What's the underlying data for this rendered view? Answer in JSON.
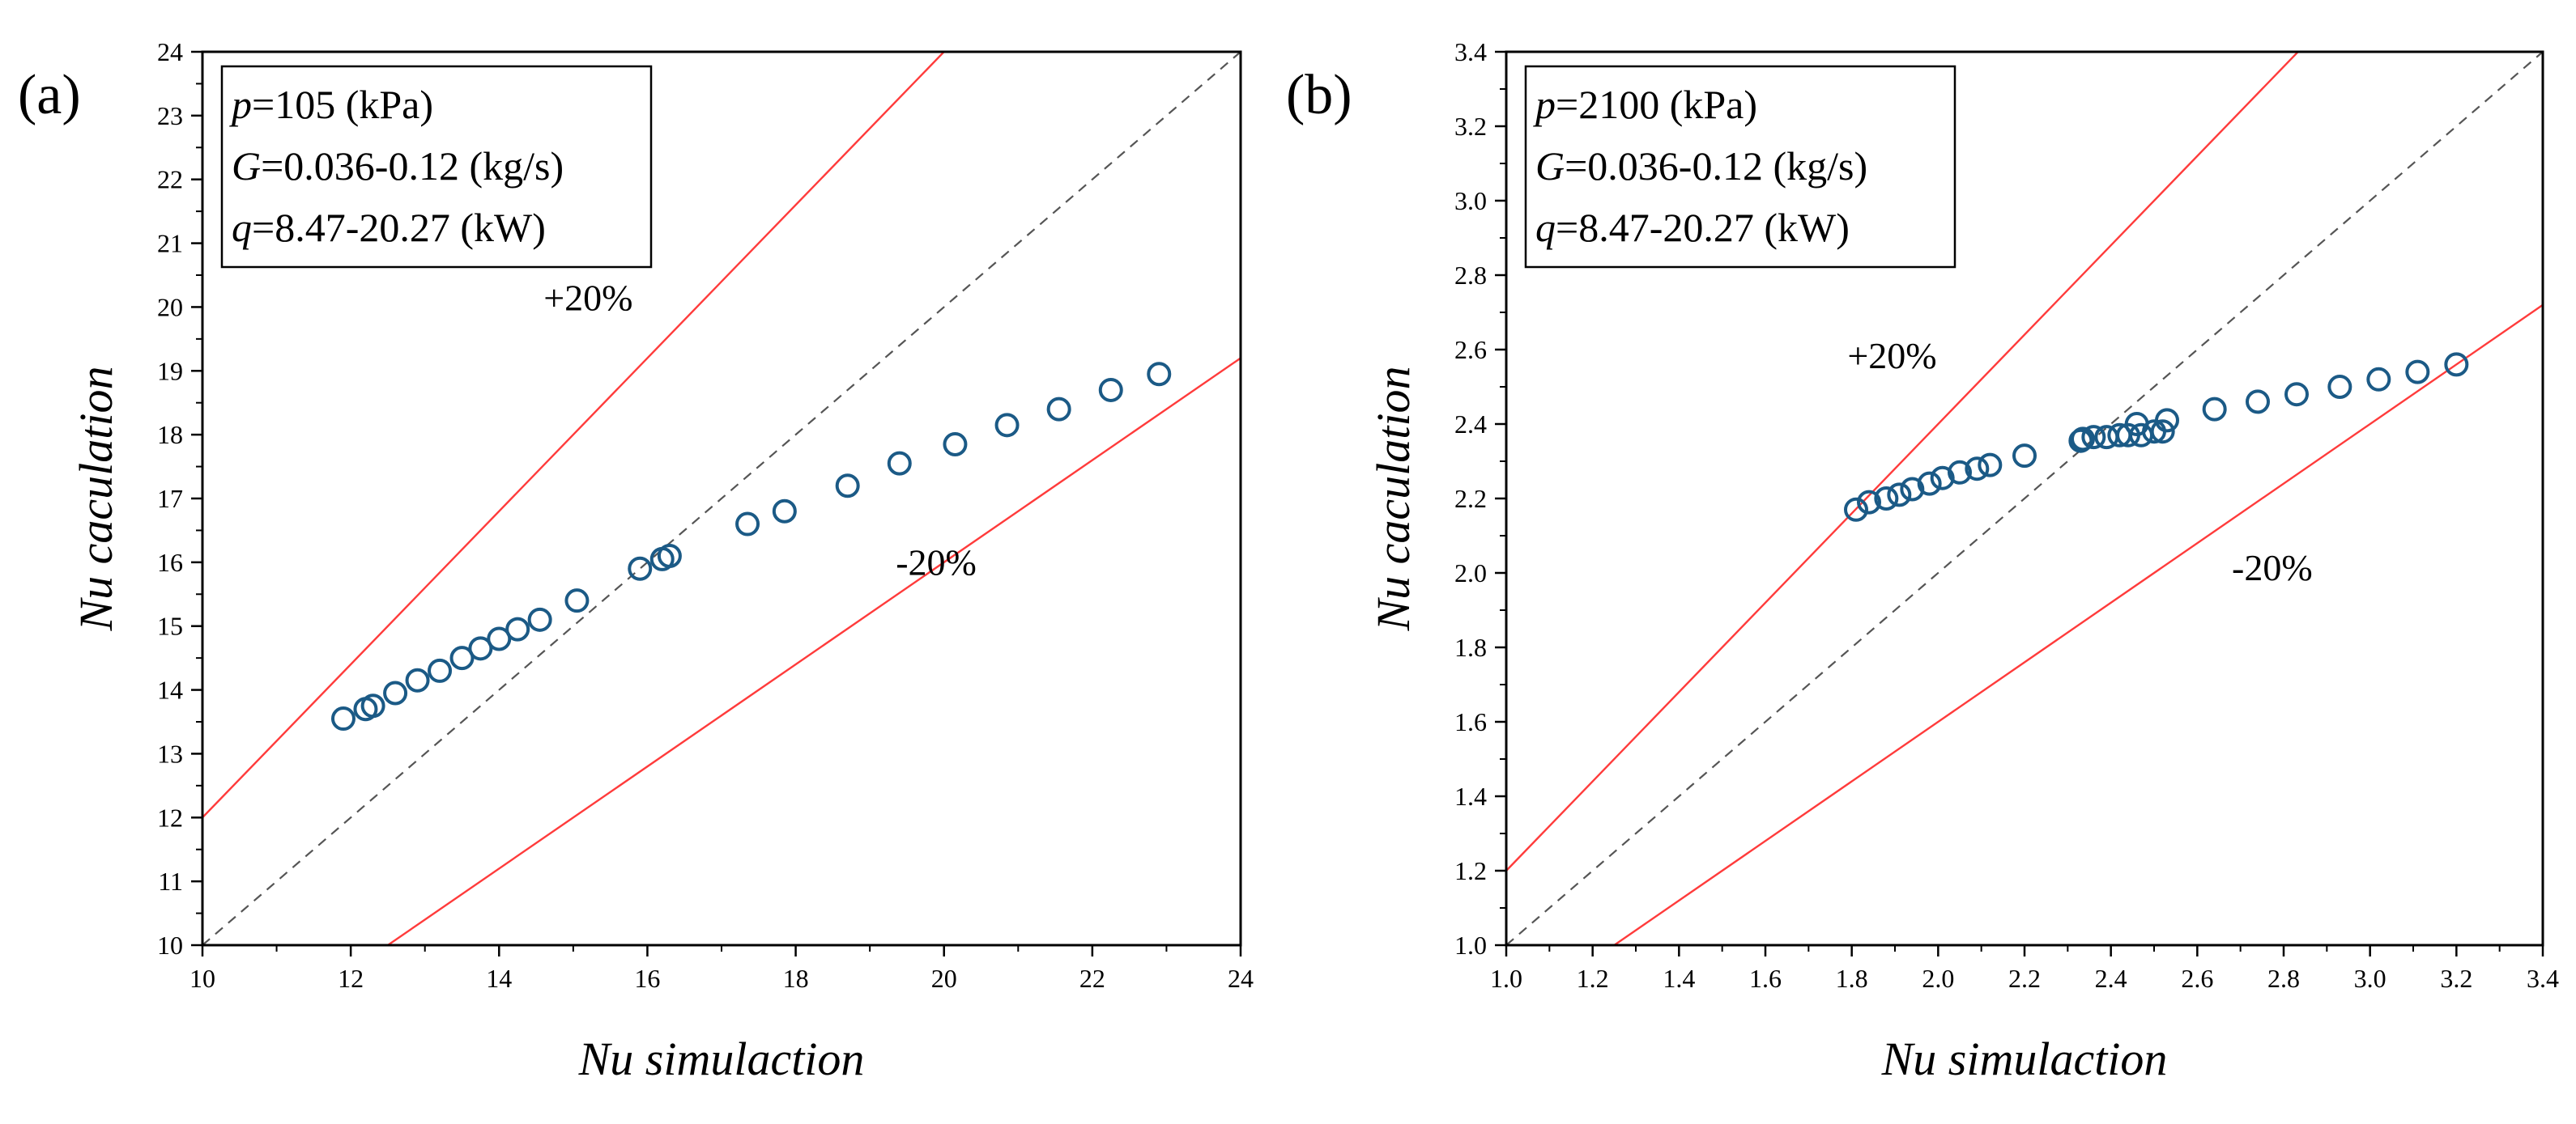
{
  "chart_data": [
    {
      "type": "scatter",
      "panel_label": "(a)",
      "xlabel": "Nu simulaction",
      "ylabel": "Nu caculation",
      "xlim": [
        10,
        24
      ],
      "ylim": [
        10,
        24
      ],
      "xticks": [
        "10",
        "12",
        "14",
        "16",
        "18",
        "20",
        "22",
        "24"
      ],
      "yticks": [
        "10",
        "11",
        "12",
        "13",
        "14",
        "15",
        "16",
        "17",
        "18",
        "19",
        "20",
        "21",
        "22",
        "23",
        "24"
      ],
      "grid": false,
      "legend_box": {
        "placement": "top-left",
        "lines": [
          {
            "var": "p",
            "text": "=105 (kPa)"
          },
          {
            "var": "G",
            "text": "=0.036-0.12 (kg/s)"
          },
          {
            "var": "q",
            "text": "=8.47-20.27 (kW)"
          }
        ]
      },
      "reference_lines": [
        {
          "label": "+20%",
          "slope": 1.2,
          "color": "#ff3b3b",
          "style": "solid"
        },
        {
          "label": "",
          "slope": 1.0,
          "color": "#555555",
          "style": "dashed"
        },
        {
          "label": "-20%",
          "slope": 0.8,
          "color": "#ff3b3b",
          "style": "solid"
        }
      ],
      "annotations": [
        {
          "text": "+20%",
          "x": 14.6,
          "y": 19.95
        },
        {
          "text": "-20%",
          "x": 19.35,
          "y": 15.8
        }
      ],
      "marker_color": "#1b5a86",
      "points": {
        "x": [
          11.9,
          12.2,
          12.3,
          12.6,
          12.9,
          13.2,
          13.5,
          13.75,
          14.0,
          14.25,
          14.55,
          15.05,
          15.9,
          16.2,
          16.3,
          17.35,
          17.85,
          18.7,
          19.4,
          20.15,
          20.85,
          21.55,
          22.25,
          22.9
        ],
        "y": [
          13.55,
          13.7,
          13.75,
          13.95,
          14.15,
          14.3,
          14.5,
          14.65,
          14.8,
          14.95,
          15.1,
          15.4,
          15.9,
          16.05,
          16.1,
          16.6,
          16.8,
          17.2,
          17.55,
          17.85,
          18.15,
          18.4,
          18.7,
          18.95
        ]
      }
    },
    {
      "type": "scatter",
      "panel_label": "(b)",
      "xlabel": "Nu simulaction",
      "ylabel": "Nu caculation",
      "xlim": [
        1.0,
        3.4
      ],
      "ylim": [
        1.0,
        3.4
      ],
      "xticks": [
        "1.0",
        "1.2",
        "1.4",
        "1.6",
        "1.8",
        "2.0",
        "2.2",
        "2.4",
        "2.6",
        "2.8",
        "3.0",
        "3.2",
        "3.4"
      ],
      "yticks": [
        "1.0",
        "1.2",
        "1.4",
        "1.6",
        "1.8",
        "2.0",
        "2.2",
        "2.4",
        "2.6",
        "2.8",
        "3.0",
        "3.2",
        "3.4"
      ],
      "grid": false,
      "legend_box": {
        "placement": "top-left",
        "lines": [
          {
            "var": "p",
            "text": "=2100 (kPa)"
          },
          {
            "var": "G",
            "text": "=0.036-0.12 (kg/s)"
          },
          {
            "var": "q",
            "text": "=8.47-20.27 (kW)"
          }
        ]
      },
      "reference_lines": [
        {
          "label": "+20%",
          "slope": 1.2,
          "color": "#ff3b3b",
          "style": "solid"
        },
        {
          "label": "",
          "slope": 1.0,
          "color": "#555555",
          "style": "dashed"
        },
        {
          "label": "-20%",
          "slope": 0.8,
          "color": "#ff3b3b",
          "style": "solid"
        }
      ],
      "annotations": [
        {
          "text": "+20%",
          "x": 1.79,
          "y": 2.55
        },
        {
          "text": "-20%",
          "x": 2.68,
          "y": 1.98
        }
      ],
      "marker_color": "#1b5a86",
      "points": {
        "x": [
          1.81,
          1.84,
          1.88,
          1.91,
          1.94,
          1.98,
          2.01,
          2.05,
          2.09,
          2.12,
          2.2,
          2.33,
          2.335,
          2.36,
          2.39,
          2.42,
          2.44,
          2.46,
          2.47,
          2.5,
          2.52,
          2.53,
          2.64,
          2.74,
          2.83,
          2.93,
          3.02,
          3.11,
          3.2
        ],
        "y": [
          2.17,
          2.19,
          2.2,
          2.21,
          2.225,
          2.24,
          2.255,
          2.27,
          2.28,
          2.29,
          2.315,
          2.355,
          2.36,
          2.365,
          2.365,
          2.37,
          2.37,
          2.4,
          2.37,
          2.38,
          2.38,
          2.41,
          2.44,
          2.46,
          2.48,
          2.5,
          2.52,
          2.54,
          2.56
        ]
      }
    }
  ]
}
